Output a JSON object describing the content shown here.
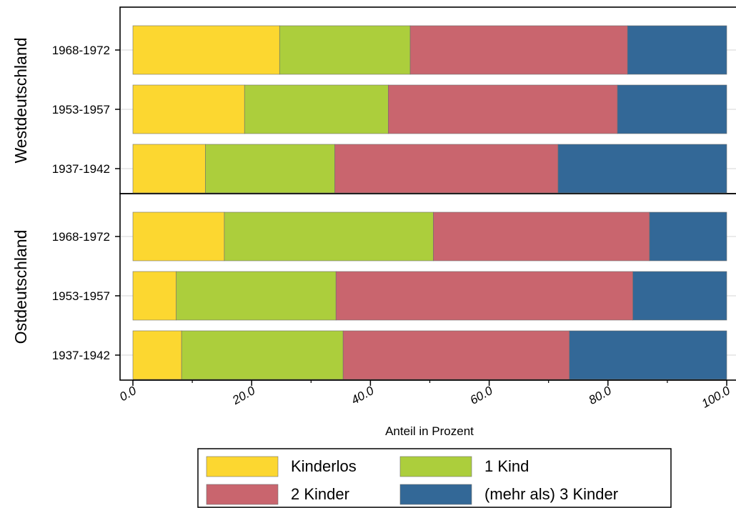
{
  "chart_data": {
    "type": "bar",
    "orientation": "horizontal",
    "stacked": true,
    "xlabel": "Anteil in Prozent",
    "xlim": [
      0,
      100
    ],
    "xticks": [
      "0.0",
      "20.0",
      "40.0",
      "60.0",
      "80.0",
      "100.0"
    ],
    "legend_position": "bottom",
    "groups": [
      {
        "name": "Westdeutschland",
        "categories": [
          "1968-1972",
          "1953-1957",
          "1937-1942"
        ],
        "series": [
          {
            "name": "Kinderlos",
            "color": "#fcd730",
            "values": [
              24.7,
              18.8,
              12.2
            ]
          },
          {
            "name": "1 Kind",
            "color": "#acce3c",
            "values": [
              22.0,
              24.2,
              21.8
            ]
          },
          {
            "name": "2 Kinder",
            "color": "#c9656e",
            "values": [
              36.6,
              38.6,
              37.6
            ]
          },
          {
            "name": "(mehr als) 3 Kinder",
            "color": "#336897",
            "values": [
              16.7,
              18.4,
              28.4
            ]
          }
        ]
      },
      {
        "name": "Ostdeutschland",
        "categories": [
          "1968-1972",
          "1953-1957",
          "1937-1942"
        ],
        "series": [
          {
            "name": "Kinderlos",
            "color": "#fcd730",
            "values": [
              15.4,
              7.3,
              8.2
            ]
          },
          {
            "name": "1 Kind",
            "color": "#acce3c",
            "values": [
              35.2,
              26.9,
              27.2
            ]
          },
          {
            "name": "2 Kinder",
            "color": "#c9656e",
            "values": [
              36.4,
              50.0,
              38.1
            ]
          },
          {
            "name": "(mehr als) 3 Kinder",
            "color": "#336897",
            "values": [
              13.0,
              15.8,
              26.5
            ]
          }
        ]
      }
    ]
  }
}
